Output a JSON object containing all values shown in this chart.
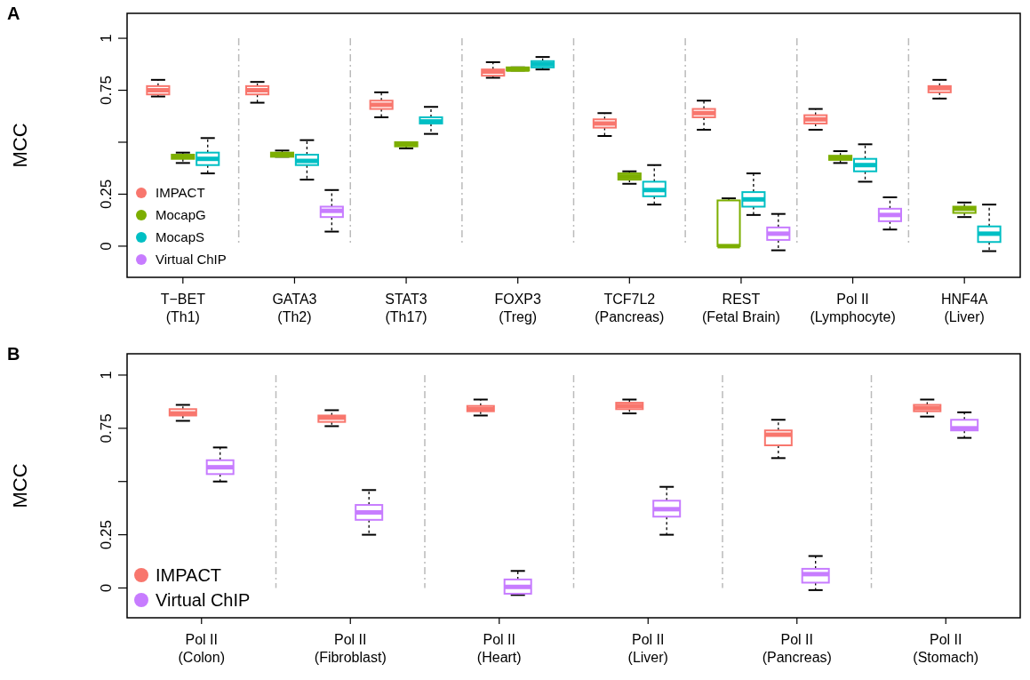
{
  "chart_data": [
    {
      "type": "box",
      "title": "A",
      "ylabel": "MCC",
      "categories": [
        "T−BET\n(Th1)",
        "GATA3\n(Th2)",
        "STAT3\n(Th17)",
        "FOXP3\n(Treg)",
        "TCF7L2\n(Pancreas)",
        "REST\n(Fetal Brain)",
        "Pol II\n(Lymphocyte)",
        "HNF4A\n(Liver)"
      ],
      "ylim": [
        -0.15,
        1.12
      ],
      "yticks": [
        0,
        0.25,
        {
          "value": 0.5,
          "label": null
        },
        0.75,
        1
      ],
      "grid": "x",
      "legend": "bottom left",
      "series": [
        {
          "name": "IMPACT",
          "color": "#f8766d",
          "boxes": [
            {
              "low": 0.72,
              "q1": 0.73,
              "median": 0.75,
              "q3": 0.77,
              "high": 0.8
            },
            {
              "low": 0.69,
              "q1": 0.73,
              "median": 0.75,
              "q3": 0.77,
              "high": 0.79
            },
            {
              "low": 0.62,
              "q1": 0.66,
              "median": 0.68,
              "q3": 0.7,
              "high": 0.74
            },
            {
              "low": 0.81,
              "q1": 0.82,
              "median": 0.84,
              "q3": 0.85,
              "high": 0.885
            },
            {
              "low": 0.53,
              "q1": 0.57,
              "median": 0.59,
              "q3": 0.61,
              "high": 0.64
            },
            {
              "low": 0.56,
              "q1": 0.62,
              "median": 0.64,
              "q3": 0.66,
              "high": 0.7
            },
            {
              "low": 0.56,
              "q1": 0.59,
              "median": 0.61,
              "q3": 0.63,
              "high": 0.66
            },
            {
              "low": 0.71,
              "q1": 0.74,
              "median": 0.76,
              "q3": 0.77,
              "high": 0.8
            }
          ]
        },
        {
          "name": "MocapG",
          "color": "#7cae00",
          "boxes": [
            {
              "low": 0.4,
              "q1": 0.42,
              "median": 0.43,
              "q3": 0.44,
              "high": 0.45
            },
            {
              "low": 0.43,
              "q1": 0.43,
              "median": 0.44,
              "q3": 0.45,
              "high": 0.46
            },
            {
              "low": 0.47,
              "q1": 0.48,
              "median": 0.49,
              "q3": 0.5,
              "high": 0.5
            },
            {
              "low": 0.845,
              "q1": 0.845,
              "median": 0.85,
              "q3": 0.86,
              "high": 0.86
            },
            {
              "low": 0.3,
              "q1": 0.32,
              "median": 0.335,
              "q3": 0.35,
              "high": 0.36
            },
            {
              "low": 0,
              "q1": 0,
              "median": 0,
              "q3": 0.22,
              "high": 0.23
            },
            {
              "low": 0.4,
              "q1": 0.415,
              "median": 0.425,
              "q3": 0.435,
              "high": 0.457
            },
            {
              "low": 0.14,
              "q1": 0.16,
              "median": 0.18,
              "q3": 0.19,
              "high": 0.21
            }
          ]
        },
        {
          "name": "MocapS",
          "color": "#00bfc4",
          "boxes": [
            {
              "low": 0.35,
              "q1": 0.39,
              "median": 0.42,
              "q3": 0.45,
              "high": 0.52
            },
            {
              "low": 0.32,
              "q1": 0.39,
              "median": 0.41,
              "q3": 0.44,
              "high": 0.51
            },
            {
              "low": 0.54,
              "q1": 0.59,
              "median": 0.6,
              "q3": 0.62,
              "high": 0.67
            },
            {
              "low": 0.85,
              "q1": 0.86,
              "median": 0.875,
              "q3": 0.89,
              "high": 0.91
            },
            {
              "low": 0.2,
              "q1": 0.24,
              "median": 0.27,
              "q3": 0.31,
              "high": 0.39
            },
            {
              "low": 0.15,
              "q1": 0.19,
              "median": 0.225,
              "q3": 0.26,
              "high": 0.35
            },
            {
              "low": 0.31,
              "q1": 0.36,
              "median": 0.39,
              "q3": 0.42,
              "high": 0.49
            },
            {
              "low": -0.024,
              "q1": 0.02,
              "median": 0.06,
              "q3": 0.095,
              "high": 0.2
            }
          ]
        },
        {
          "name": "Virtual ChIP",
          "color": "#c77cff",
          "boxes": [
            null,
            {
              "low": 0.07,
              "q1": 0.14,
              "median": 0.17,
              "q3": 0.19,
              "high": 0.27
            },
            null,
            null,
            null,
            {
              "low": -0.02,
              "q1": 0.03,
              "median": 0.06,
              "q3": 0.09,
              "high": 0.155
            },
            {
              "low": 0.08,
              "q1": 0.12,
              "median": 0.15,
              "q3": 0.18,
              "high": 0.235
            },
            null
          ]
        }
      ]
    },
    {
      "type": "box",
      "title": "B",
      "ylabel": "MCC",
      "categories": [
        "Pol II\n(Colon)",
        "Pol II\n(Fibroblast)",
        "Pol II\n(Heart)",
        "Pol II\n(Liver)",
        "Pol II\n(Pancreas)",
        "Pol II\n(Stomach)"
      ],
      "ylim": [
        -0.14,
        1.1
      ],
      "yticks": [
        0,
        0.25,
        {
          "value": 0.5,
          "label": null
        },
        0.75,
        1
      ],
      "grid": "x",
      "legend": "bottom left",
      "series": [
        {
          "name": "IMPACT",
          "color": "#f8766d",
          "boxes": [
            {
              "low": 0.785,
              "q1": 0.81,
              "median": 0.82,
              "q3": 0.84,
              "high": 0.86
            },
            {
              "low": 0.76,
              "q1": 0.78,
              "median": 0.8,
              "q3": 0.81,
              "high": 0.835
            },
            {
              "low": 0.81,
              "q1": 0.83,
              "median": 0.84,
              "q3": 0.855,
              "high": 0.885
            },
            {
              "low": 0.82,
              "q1": 0.84,
              "median": 0.855,
              "q3": 0.87,
              "high": 0.885
            },
            {
              "low": 0.61,
              "q1": 0.67,
              "median": 0.72,
              "q3": 0.74,
              "high": 0.79
            },
            {
              "low": 0.805,
              "q1": 0.83,
              "median": 0.845,
              "q3": 0.86,
              "high": 0.885
            }
          ]
        },
        {
          "name": "Virtual ChIP",
          "color": "#c77cff",
          "boxes": [
            {
              "low": 0.5,
              "q1": 0.535,
              "median": 0.567,
              "q3": 0.6,
              "high": 0.66
            },
            {
              "low": 0.25,
              "q1": 0.32,
              "median": 0.355,
              "q3": 0.39,
              "high": 0.46
            },
            {
              "low": -0.033,
              "q1": -0.027,
              "median": 0.005,
              "q3": 0.04,
              "high": 0.08
            },
            {
              "low": 0.25,
              "q1": 0.335,
              "median": 0.37,
              "q3": 0.41,
              "high": 0.475
            },
            {
              "low": -0.01,
              "q1": 0.025,
              "median": 0.065,
              "q3": 0.09,
              "high": 0.15
            },
            {
              "low": 0.705,
              "q1": 0.74,
              "median": 0.75,
              "q3": 0.79,
              "high": 0.825
            }
          ]
        }
      ]
    }
  ]
}
